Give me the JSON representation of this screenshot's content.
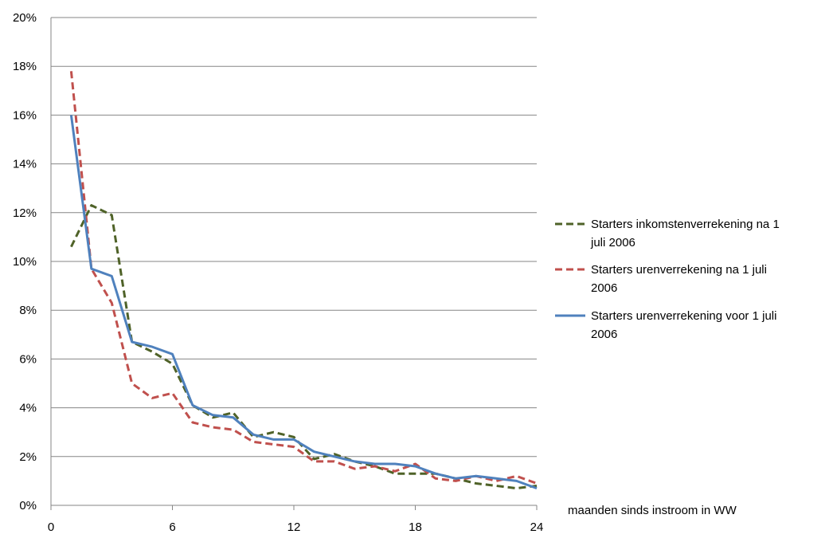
{
  "chart_data": {
    "type": "line",
    "title": "",
    "xlabel": "maanden sinds instroom in WW",
    "ylabel": "",
    "xlim": [
      0,
      24
    ],
    "ylim": [
      0,
      0.2
    ],
    "x_ticks": [
      0,
      6,
      12,
      18,
      24
    ],
    "x_tick_labels": [
      "0",
      "6",
      "12",
      "18",
      "24"
    ],
    "y_ticks": [
      0,
      0.02,
      0.04,
      0.06,
      0.08,
      0.1,
      0.12,
      0.14,
      0.16,
      0.18,
      0.2
    ],
    "y_tick_labels": [
      "0%",
      "2%",
      "4%",
      "6%",
      "8%",
      "10%",
      "12%",
      "14%",
      "16%",
      "18%",
      "20%"
    ],
    "grid": {
      "horizontal": true,
      "vertical": false
    },
    "legend_position": "right",
    "x": [
      1,
      2,
      3,
      4,
      5,
      6,
      7,
      8,
      9,
      10,
      11,
      12,
      13,
      14,
      15,
      16,
      17,
      18,
      19,
      20,
      21,
      22,
      23,
      24
    ],
    "series": [
      {
        "name": "Starters inkomstenverrekening na 1 juli 2006",
        "legend_lines": [
          "Starters inkomstenverrekening na 1",
          "juli 2006"
        ],
        "color": "#4f6228",
        "style": "dashed",
        "values": [
          0.106,
          0.123,
          0.119,
          0.067,
          0.063,
          0.058,
          0.041,
          0.036,
          0.038,
          0.028,
          0.03,
          0.028,
          0.019,
          0.021,
          0.018,
          0.016,
          0.013,
          0.013,
          0.013,
          0.011,
          0.009,
          0.008,
          0.007,
          0.008
        ]
      },
      {
        "name": "Starters urenverrekening na 1 juli 2006",
        "legend_lines": [
          "Starters urenverrekening na 1 juli",
          "2006"
        ],
        "color": "#c0504d",
        "style": "dashed",
        "values": [
          0.178,
          0.097,
          0.083,
          0.05,
          0.044,
          0.046,
          0.034,
          0.032,
          0.031,
          0.026,
          0.025,
          0.024,
          0.018,
          0.018,
          0.015,
          0.016,
          0.014,
          0.017,
          0.011,
          0.01,
          0.012,
          0.01,
          0.012,
          0.009
        ]
      },
      {
        "name": "Starters urenverrekening voor 1 juli 2006",
        "legend_lines": [
          "Starters urenverrekening voor 1 juli",
          "2006"
        ],
        "color": "#4f81bd",
        "style": "solid",
        "values": [
          0.16,
          0.097,
          0.094,
          0.067,
          0.065,
          0.062,
          0.041,
          0.037,
          0.036,
          0.029,
          0.027,
          0.027,
          0.022,
          0.02,
          0.018,
          0.017,
          0.017,
          0.016,
          0.013,
          0.011,
          0.012,
          0.011,
          0.01,
          0.007
        ]
      }
    ]
  },
  "colors": {
    "gridline": "#868686",
    "axis": "#868686",
    "background": "#ffffff"
  }
}
